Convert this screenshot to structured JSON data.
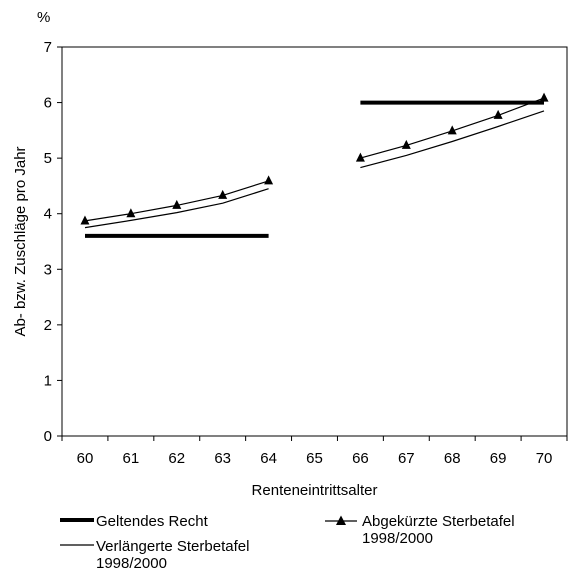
{
  "chart_data": {
    "type": "line",
    "unit_label": "%",
    "xlabel": "Renteneintrittsalter",
    "ylabel": "Ab- bzw. Zuschläge pro Jahr",
    "xlim": [
      59.5,
      70.5
    ],
    "ylim": [
      0,
      7
    ],
    "x_ticks": [
      "60",
      "61",
      "62",
      "63",
      "64",
      "65",
      "66",
      "67",
      "68",
      "69",
      "70"
    ],
    "y_ticks": [
      "0",
      "1",
      "2",
      "3",
      "4",
      "5",
      "6",
      "7"
    ],
    "grid": false,
    "legend_position": "bottom",
    "series": [
      {
        "name": "Geltendes Recht",
        "style": "thick",
        "color": "#000000",
        "segments": [
          {
            "x": [
              60,
              64
            ],
            "y": [
              3.6,
              3.6
            ]
          },
          {
            "x": [
              66,
              70
            ],
            "y": [
              6.0,
              6.0
            ]
          }
        ]
      },
      {
        "name": "Abgekürzte Sterbetafel 1998/2000",
        "style": "triangle-markers",
        "color": "#000000",
        "segments": [
          {
            "x": [
              60,
              61,
              62,
              63,
              64
            ],
            "y": [
              3.87,
              4.0,
              4.15,
              4.33,
              4.59
            ]
          },
          {
            "x": [
              66,
              67,
              68,
              69,
              70
            ],
            "y": [
              5.0,
              5.23,
              5.49,
              5.77,
              6.08
            ]
          }
        ]
      },
      {
        "name": "Verlängerte Sterbetafel 1998/2000",
        "style": "thin",
        "color": "#000000",
        "segments": [
          {
            "x": [
              60,
              61,
              62,
              63,
              64
            ],
            "y": [
              3.75,
              3.88,
              4.02,
              4.19,
              4.45
            ]
          },
          {
            "x": [
              66,
              67,
              68,
              69,
              70
            ],
            "y": [
              4.83,
              5.05,
              5.3,
              5.57,
              5.85
            ]
          }
        ]
      }
    ]
  },
  "legend": {
    "item1": "Geltendes Recht",
    "item2_line1": "Abgekürzte Sterbetafel",
    "item2_line2": "1998/2000",
    "item3_line1": "Verlängerte Sterbetafel",
    "item3_line2": "1998/2000"
  }
}
